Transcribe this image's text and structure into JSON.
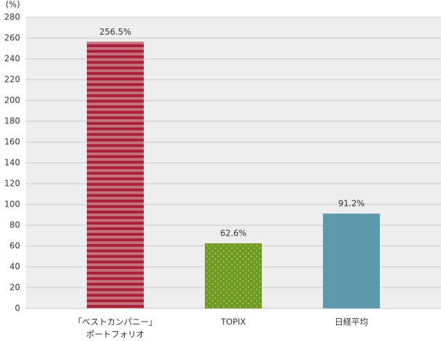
{
  "chart_data": {
    "type": "bar",
    "y_unit": "(%)",
    "categories": [
      [
        "「ベストカンパニー」",
        "ポートフォリオ"
      ],
      [
        "TOPIX"
      ],
      [
        "日経平均"
      ]
    ],
    "values": [
      256.5,
      62.6,
      91.2
    ],
    "value_labels": [
      "256.5%",
      "62.6%",
      "91.2%"
    ],
    "colors": [
      "#a8233a",
      "#6f9a22",
      "#5e9aac"
    ],
    "patterns": [
      "stripes",
      "dots",
      "solid"
    ],
    "ylim": [
      0,
      280
    ],
    "yticks": [
      0,
      20,
      40,
      60,
      80,
      100,
      120,
      140,
      160,
      180,
      200,
      220,
      240,
      260,
      280
    ],
    "grid": true
  }
}
